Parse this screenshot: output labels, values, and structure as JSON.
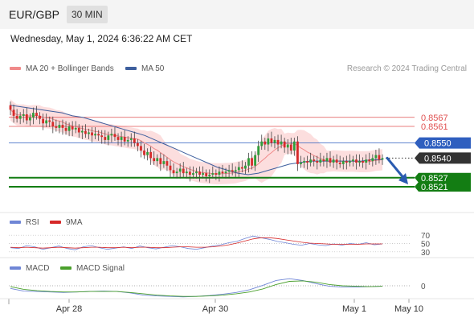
{
  "header": {
    "symbol": "EUR/GBP",
    "interval": "30 MIN"
  },
  "datetime": "Wednesday, May 1, 2024 6:36:22 AM CET",
  "legend_main": [
    {
      "label": "MA 20 + Bollinger Bands",
      "color": "#f08a8a"
    },
    {
      "label": "MA 50",
      "color": "#3e5f9e"
    }
  ],
  "credit": "Research © 2024 Trading Central",
  "legend_rsi": [
    {
      "label": "RSI",
      "color": "#6f86d6"
    },
    {
      "label": "9MA",
      "color": "#d62828"
    }
  ],
  "legend_macd": [
    {
      "label": "MACD",
      "color": "#6f86d6"
    },
    {
      "label": "MACD Signal",
      "color": "#4aa02c"
    }
  ],
  "x_axis": {
    "labels": [
      "Apr 28",
      "Apr 30",
      "May 1",
      "May 10"
    ]
  },
  "colors": {
    "up": "#2e9e3a",
    "down": "#d62a2a",
    "resistance": "#e05050",
    "support": "#137d13",
    "pivot": "#2f5fbf",
    "last": "#333333"
  },
  "chart_data": {
    "type": "candlestick",
    "price_range": [
      0.8505,
      0.8585
    ],
    "levels": [
      {
        "label": "0.8567",
        "value": 0.8567,
        "kind": "resistance"
      },
      {
        "label": "0.8561",
        "value": 0.8561,
        "kind": "resistance"
      },
      {
        "label": "0.8550",
        "value": 0.855,
        "kind": "pivot"
      },
      {
        "label": "0.8540",
        "value": 0.854,
        "kind": "last"
      },
      {
        "label": "0.8527",
        "value": 0.8527,
        "kind": "support"
      },
      {
        "label": "0.8521",
        "value": 0.8521,
        "kind": "support"
      }
    ],
    "forecast": {
      "from": 0.854,
      "to": 0.8521
    },
    "closes": [
      0.8572,
      0.8568,
      0.8566,
      0.8568,
      0.8569,
      0.8565,
      0.8567,
      0.857,
      0.8568,
      0.8566,
      0.8563,
      0.8565,
      0.8564,
      0.8561,
      0.856,
      0.8562,
      0.856,
      0.8558,
      0.8561,
      0.8559,
      0.856,
      0.8557,
      0.8558,
      0.8556,
      0.8557,
      0.8555,
      0.8556,
      0.8555,
      0.8554,
      0.8552,
      0.8555,
      0.8556,
      0.8554,
      0.8552,
      0.8554,
      0.8551,
      0.8552,
      0.8553,
      0.855,
      0.8548,
      0.8545,
      0.8542,
      0.8544,
      0.854,
      0.8538,
      0.854,
      0.8536,
      0.8538,
      0.8535,
      0.8532,
      0.853,
      0.8531,
      0.8533,
      0.853,
      0.8531,
      0.8529,
      0.853,
      0.8531,
      0.8529,
      0.853,
      0.8528,
      0.8529,
      0.853,
      0.8529,
      0.8531,
      0.853,
      0.8531,
      0.8532,
      0.8531,
      0.8532,
      0.8534,
      0.8533,
      0.8535,
      0.854,
      0.8535,
      0.8542,
      0.8548,
      0.8551,
      0.8549,
      0.8553,
      0.855,
      0.8552,
      0.8549,
      0.8551,
      0.8547,
      0.8549,
      0.8545,
      0.8551,
      0.8536,
      0.8537,
      0.8538,
      0.8537,
      0.8539,
      0.8538,
      0.8537,
      0.8539,
      0.8538,
      0.854,
      0.8537,
      0.8539,
      0.8537,
      0.8536,
      0.8538,
      0.8537,
      0.8538,
      0.8539,
      0.8537,
      0.8538,
      0.8537,
      0.8539,
      0.8538,
      0.854,
      0.8542,
      0.8539,
      0.854
    ],
    "ma50": [
      0.8575,
      0.8574,
      0.8573,
      0.8572,
      0.8571,
      0.857,
      0.8568,
      0.8567,
      0.8565,
      0.8563,
      0.8561,
      0.8559,
      0.8557,
      0.8555,
      0.8552,
      0.8549,
      0.8546,
      0.8543,
      0.854,
      0.8537,
      0.8534,
      0.8532,
      0.853,
      0.8529,
      0.853,
      0.8532,
      0.8534,
      0.8536,
      0.8537,
      0.8538,
      0.8538,
      0.8538,
      0.8538,
      0.8538,
      0.8538,
      0.8539,
      0.8539
    ],
    "rsi": {
      "range": [
        20,
        80
      ],
      "ticks": [
        70,
        50,
        30
      ],
      "tick_labels": [
        "70",
        "50",
        "30"
      ],
      "values": [
        40,
        38,
        45,
        42,
        36,
        40,
        44,
        38,
        35,
        42,
        45,
        40,
        36,
        39,
        42,
        38,
        44,
        40,
        37,
        41,
        45,
        42,
        38,
        36,
        40,
        44,
        47,
        52,
        55,
        62,
        68,
        64,
        60,
        55,
        52,
        48,
        46,
        50,
        47,
        45,
        49,
        46,
        50,
        48,
        52,
        47,
        49
      ],
      "ma": [
        41,
        40,
        41,
        40,
        39,
        40,
        41,
        40,
        39,
        40,
        41,
        41,
        40,
        40,
        41,
        40,
        41,
        41,
        40,
        40,
        41,
        42,
        42,
        41,
        41,
        42,
        44,
        47,
        51,
        56,
        61,
        64,
        64,
        62,
        59,
        56,
        53,
        51,
        50,
        49,
        48,
        48,
        48,
        48,
        49,
        49,
        49
      ]
    },
    "macd": {
      "zero_label": "0",
      "values": [
        -0.6,
        -1.2,
        -1.3,
        -1.4,
        -1.5,
        -1.4,
        -1.3,
        -1.2,
        -1.3,
        -1.6,
        -2.1,
        -2.3,
        -2.4,
        -2.5,
        -2.4,
        -2.2,
        -1.9,
        -1.5,
        -0.9,
        0.1,
        1.2,
        1.6,
        1.2,
        0.5,
        -0.1,
        -0.3,
        -0.3,
        -0.2,
        -0.1
      ],
      "signal": [
        -0.2,
        -0.8,
        -1.1,
        -1.3,
        -1.4,
        -1.4,
        -1.3,
        -1.3,
        -1.3,
        -1.5,
        -1.8,
        -2.1,
        -2.3,
        -2.4,
        -2.4,
        -2.3,
        -2.1,
        -1.8,
        -1.4,
        -0.7,
        0.3,
        1.0,
        1.1,
        0.8,
        0.3,
        0.0,
        -0.1,
        -0.2,
        -0.1
      ]
    }
  }
}
